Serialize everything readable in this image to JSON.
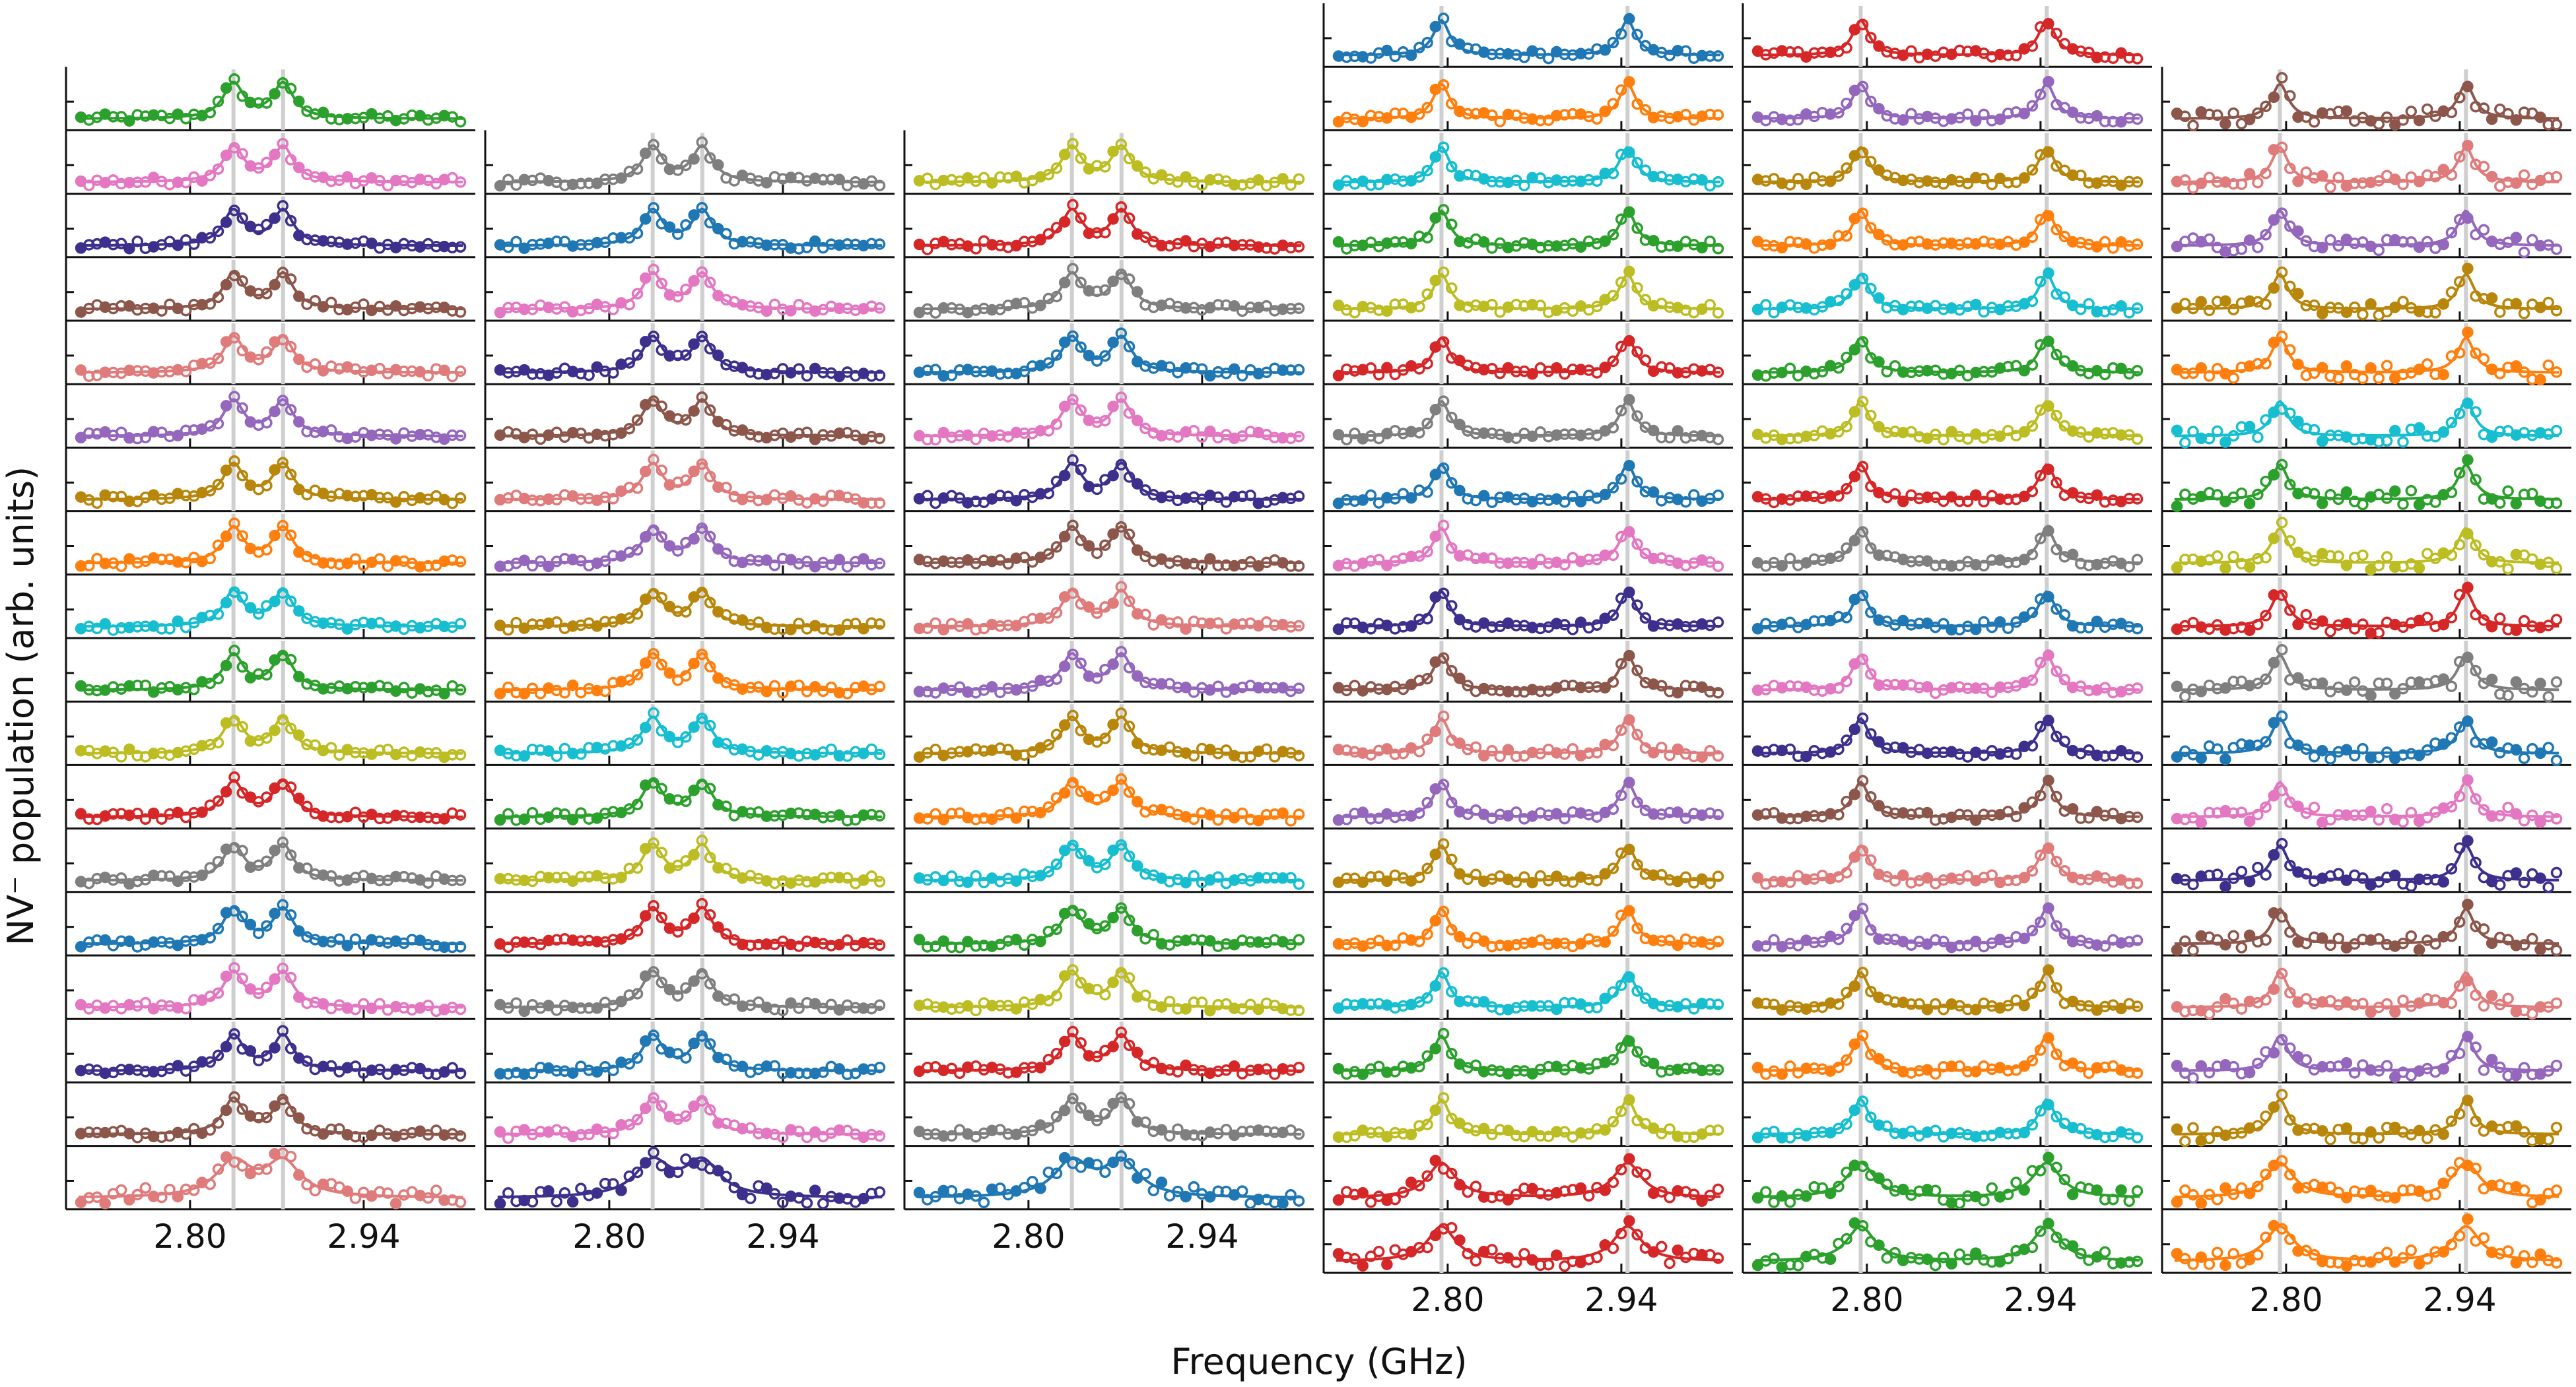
{
  "chart_data": {
    "type": "line",
    "ylabel": "NV⁻ population (arb. units)",
    "xlabel": "Frequency (GHz)",
    "x_ticks": [
      "2.80",
      "2.94"
    ],
    "columns": [
      {
        "column": 1,
        "rows": 18,
        "start_row": 1,
        "peaks": [
          2.835,
          2.875
        ],
        "width": 0.01,
        "colors": [
          "#2ca02c",
          "#e377c2",
          "#3d2f8c",
          "#8c564b",
          "#e07b7b",
          "#9467bd",
          "#b8860b",
          "#ff7f0e",
          "#17becf",
          "#2ca02c",
          "#bcbd22",
          "#d62728",
          "#7f7f7f",
          "#1f77b4",
          "#e377c2",
          "#3d2f8c",
          "#8c564b",
          "#e07b7b"
        ]
      },
      {
        "column": 2,
        "rows": 17,
        "start_row": 2,
        "peaks": [
          2.835,
          2.875
        ],
        "width": 0.01,
        "colors": [
          "#7f7f7f",
          "#1f77b4",
          "#e377c2",
          "#3d2f8c",
          "#8c564b",
          "#e07b7b",
          "#9467bd",
          "#b8860b",
          "#ff7f0e",
          "#17becf",
          "#2ca02c",
          "#bcbd22",
          "#d62728",
          "#7f7f7f",
          "#1f77b4",
          "#e377c2",
          "#3d2f8c"
        ]
      },
      {
        "column": 3,
        "rows": 17,
        "start_row": 2,
        "peaks": [
          2.835,
          2.875
        ],
        "width": 0.01,
        "colors": [
          "#bcbd22",
          "#d62728",
          "#7f7f7f",
          "#1f77b4",
          "#e377c2",
          "#3d2f8c",
          "#8c564b",
          "#e07b7b",
          "#9467bd",
          "#b8860b",
          "#ff7f0e",
          "#17becf",
          "#2ca02c",
          "#bcbd22",
          "#d62728",
          "#7f7f7f",
          "#1f77b4"
        ]
      },
      {
        "column": 4,
        "rows": 20,
        "start_row": 0,
        "peaks": [
          2.795,
          2.945
        ],
        "width": 0.008,
        "colors": [
          "#1f77b4",
          "#ff7f0e",
          "#17becf",
          "#2ca02c",
          "#bcbd22",
          "#d62728",
          "#7f7f7f",
          "#1f77b4",
          "#e377c2",
          "#3d2f8c",
          "#8c564b",
          "#e07b7b",
          "#9467bd",
          "#b8860b",
          "#ff7f0e",
          "#17becf",
          "#2ca02c",
          "#bcbd22",
          "#d62728",
          "#d62728"
        ]
      },
      {
        "column": 5,
        "rows": 20,
        "start_row": 0,
        "peaks": [
          2.795,
          2.945
        ],
        "width": 0.008,
        "colors": [
          "#d62728",
          "#9467bd",
          "#b8860b",
          "#ff7f0e",
          "#17becf",
          "#2ca02c",
          "#bcbd22",
          "#d62728",
          "#7f7f7f",
          "#1f77b4",
          "#e377c2",
          "#3d2f8c",
          "#8c564b",
          "#e07b7b",
          "#9467bd",
          "#b8860b",
          "#ff7f0e",
          "#17becf",
          "#2ca02c",
          "#2ca02c"
        ]
      },
      {
        "column": 6,
        "rows": 19,
        "start_row": 1,
        "peaks": [
          2.795,
          2.945
        ],
        "width": 0.008,
        "colors": [
          "#8c564b",
          "#e07b7b",
          "#9467bd",
          "#b8860b",
          "#ff7f0e",
          "#17becf",
          "#2ca02c",
          "#bcbd22",
          "#d62728",
          "#7f7f7f",
          "#1f77b4",
          "#e377c2",
          "#3d2f8c",
          "#8c564b",
          "#e07b7b",
          "#9467bd",
          "#b8860b",
          "#ff7f0e",
          "#ff7f0e"
        ]
      }
    ]
  }
}
